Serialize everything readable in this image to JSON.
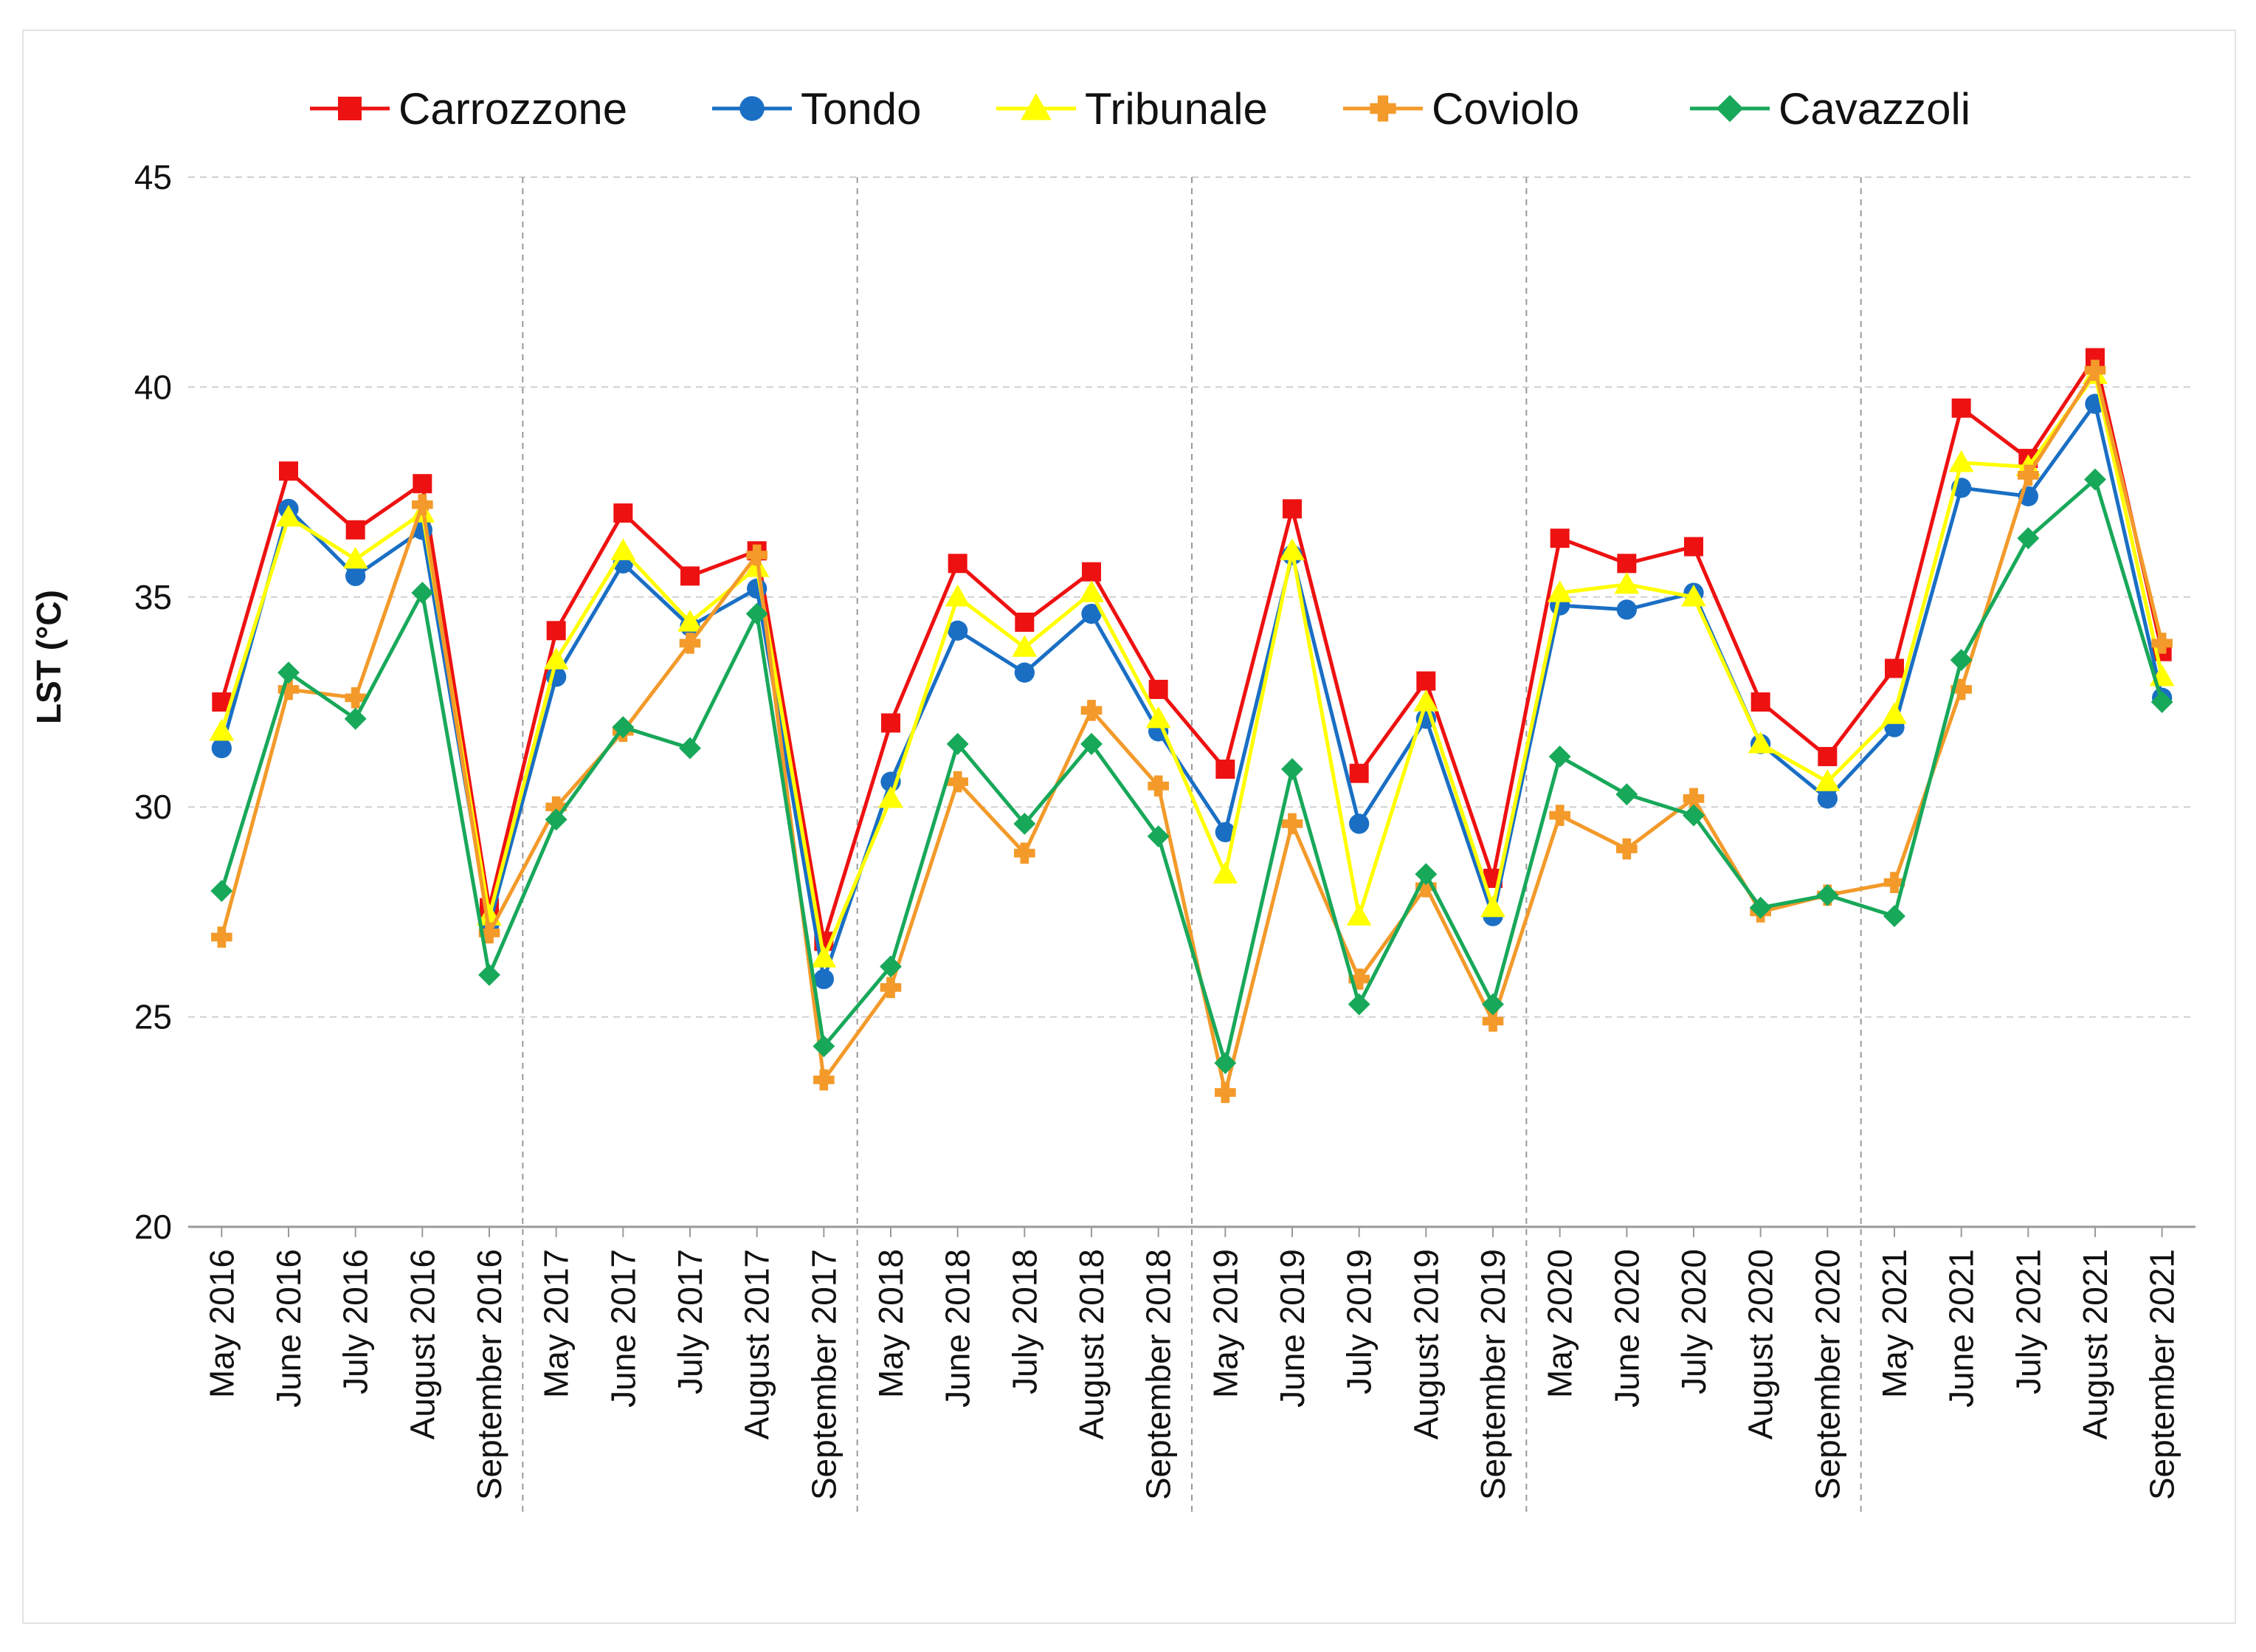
{
  "chart_data": {
    "type": "line",
    "title": "",
    "xlabel": "",
    "ylabel": "LST (°C)",
    "ylim": [
      20,
      45
    ],
    "yticks": [
      20,
      25,
      30,
      35,
      40,
      45
    ],
    "grid": true,
    "legend_position": "top",
    "year_separators_after": [
      4,
      9,
      14,
      19,
      24
    ],
    "categories": [
      "May 2016",
      "June 2016",
      "July 2016",
      "August 2016",
      "September 2016",
      "May 2017",
      "June 2017",
      "July 2017",
      "August 2017",
      "September 2017",
      "May 2018",
      "June 2018",
      "July 2018",
      "August 2018",
      "September 2018",
      "May 2019",
      "June 2019",
      "July 2019",
      "August 2019",
      "September 2019",
      "May 2020",
      "June 2020",
      "July 2020",
      "August 2020",
      "September 2020",
      "May 2021",
      "June 2021",
      "July 2021",
      "August 2021",
      "September 2021"
    ],
    "series": [
      {
        "name": "Carrozzone",
        "color": "#ee1111",
        "marker": "square",
        "values": [
          32.5,
          38.0,
          36.6,
          37.7,
          27.6,
          34.2,
          37.0,
          35.5,
          36.1,
          26.8,
          32.0,
          35.8,
          34.4,
          35.6,
          32.8,
          30.9,
          37.1,
          30.8,
          33.0,
          28.3,
          36.4,
          35.8,
          36.2,
          32.5,
          31.2,
          33.3,
          39.5,
          38.3,
          40.7,
          33.7
        ]
      },
      {
        "name": "Tondo",
        "color": "#1a6fc4",
        "marker": "circle",
        "values": [
          31.4,
          37.1,
          35.5,
          36.6,
          27.2,
          33.1,
          35.8,
          34.3,
          35.2,
          25.9,
          30.6,
          34.2,
          33.2,
          34.6,
          31.8,
          29.4,
          36.0,
          29.6,
          32.1,
          27.4,
          34.8,
          34.7,
          35.1,
          31.5,
          30.2,
          31.9,
          37.6,
          37.4,
          39.6,
          32.6
        ]
      },
      {
        "name": "Tribunale",
        "color": "#ffff00",
        "marker": "triangle",
        "values": [
          31.8,
          36.9,
          35.9,
          37.0,
          27.4,
          33.5,
          36.1,
          34.4,
          35.7,
          26.4,
          30.2,
          35.0,
          33.8,
          35.1,
          32.1,
          28.4,
          36.1,
          27.4,
          32.5,
          27.6,
          35.1,
          35.3,
          35.0,
          31.5,
          30.6,
          32.2,
          38.2,
          38.1,
          40.3,
          33.1
        ]
      },
      {
        "name": "Coviolo",
        "color": "#f39a2a",
        "marker": "plus",
        "values": [
          26.9,
          32.8,
          32.6,
          37.2,
          27.0,
          30.0,
          31.8,
          33.9,
          36.0,
          23.5,
          25.7,
          30.6,
          28.9,
          32.3,
          30.5,
          23.2,
          29.6,
          25.9,
          28.1,
          24.9,
          29.8,
          29.0,
          30.2,
          27.5,
          27.9,
          28.2,
          32.8,
          37.9,
          40.4,
          33.9
        ]
      },
      {
        "name": "Cavazzoli",
        "color": "#18a85a",
        "marker": "diamond",
        "values": [
          28.0,
          33.2,
          32.1,
          35.1,
          26.0,
          29.7,
          31.9,
          31.4,
          34.6,
          24.3,
          26.2,
          31.5,
          29.6,
          31.5,
          29.3,
          23.9,
          30.9,
          25.3,
          28.4,
          25.3,
          31.2,
          30.3,
          29.8,
          27.6,
          27.9,
          27.4,
          33.5,
          36.4,
          37.8,
          32.5
        ]
      }
    ]
  }
}
